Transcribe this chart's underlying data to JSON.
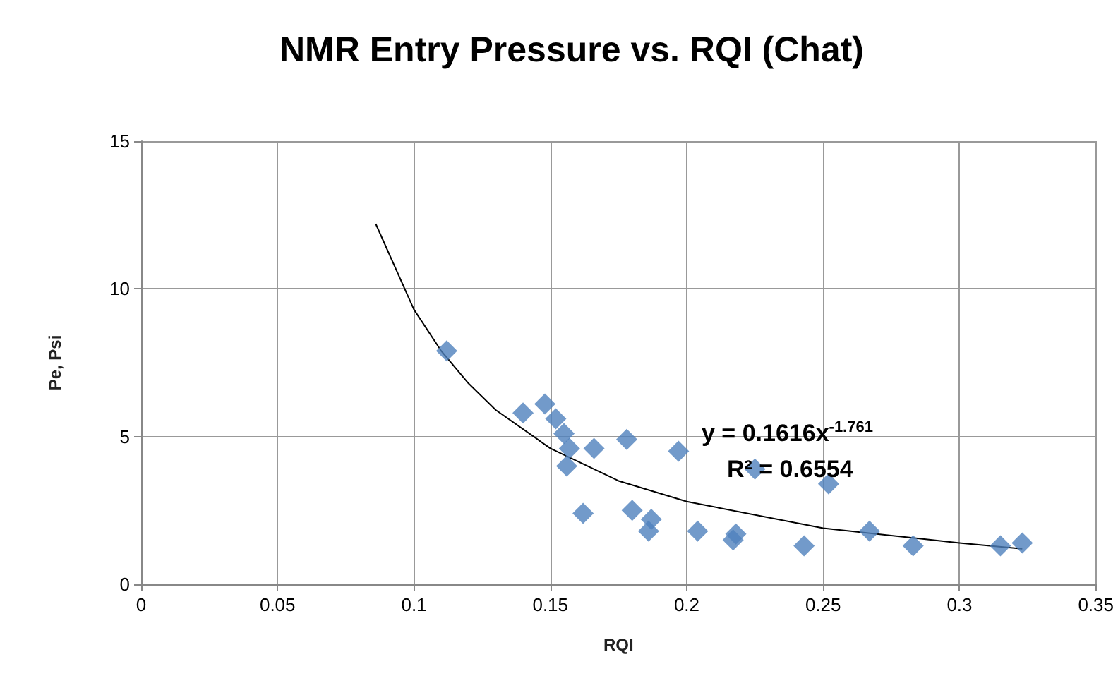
{
  "chart_data": {
    "type": "scatter",
    "title": "NMR Entry Pressure vs. RQI (Chat)",
    "xlabel": "RQI",
    "ylabel": "Pe, Psi",
    "xlim": [
      0,
      0.35
    ],
    "xticks": [
      0,
      0.05,
      0.1,
      0.15,
      0.2,
      0.25,
      0.3,
      0.35
    ],
    "ylim": [
      0,
      15
    ],
    "yticks": [
      0,
      5,
      10,
      15
    ],
    "grid": true,
    "marker": "diamond",
    "series": [
      {
        "color": "#4f81bd",
        "x": [
          0.112,
          0.14,
          0.148,
          0.152,
          0.155,
          0.157,
          0.156,
          0.166,
          0.162,
          0.178,
          0.18,
          0.187,
          0.186,
          0.197,
          0.204,
          0.217,
          0.218,
          0.225,
          0.243,
          0.252,
          0.267,
          0.283,
          0.315,
          0.323
        ],
        "values": [
          7.9,
          5.8,
          6.1,
          5.6,
          5.1,
          4.6,
          4.0,
          4.6,
          2.4,
          4.9,
          2.5,
          2.2,
          1.8,
          4.5,
          1.8,
          1.5,
          1.7,
          3.9,
          1.3,
          3.4,
          1.8,
          1.3,
          1.3,
          1.4
        ]
      },
      {
        "type": "line",
        "color": "#000000",
        "marker": "none",
        "x": [
          0.086,
          0.1,
          0.11,
          0.12,
          0.13,
          0.15,
          0.175,
          0.2,
          0.25,
          0.3,
          0.323
        ],
        "values": [
          12.2,
          9.3,
          7.9,
          6.8,
          5.9,
          4.6,
          3.5,
          2.8,
          1.9,
          1.4,
          1.2
        ]
      }
    ],
    "annotations": [
      "y = 0.1616x$^{-1.761}$",
      "R² = 0.6554"
    ]
  }
}
